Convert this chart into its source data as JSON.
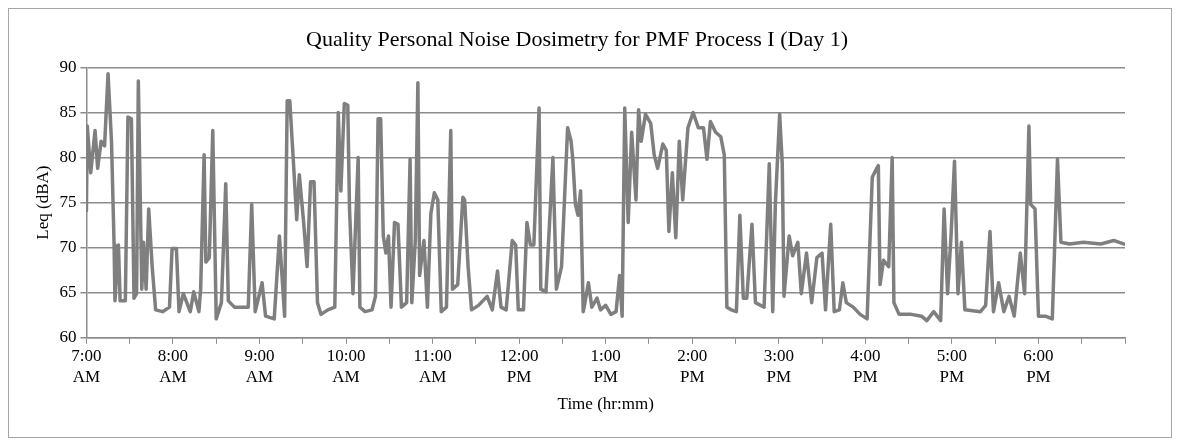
{
  "chart_data": {
    "type": "line",
    "title": "Quality Personal Noise Dosimetry for PMF Process I (Day 1)",
    "xlabel": "Time (hr:mm)",
    "ylabel": "Leq (dBA)",
    "xlim": [
      7,
      19
    ],
    "xticks": [
      {
        "value": 7,
        "label": "7:00 AM"
      },
      {
        "value": 7.5,
        "label": null
      },
      {
        "value": 8,
        "label": "8:00 AM"
      },
      {
        "value": 8.5,
        "label": null
      },
      {
        "value": 9,
        "label": "9:00 AM"
      },
      {
        "value": 9.5,
        "label": null
      },
      {
        "value": 10,
        "label": "10:00 AM"
      },
      {
        "value": 10.5,
        "label": null
      },
      {
        "value": 11,
        "label": "11:00 AM"
      },
      {
        "value": 11.5,
        "label": null
      },
      {
        "value": 12,
        "label": "12:00 PM"
      },
      {
        "value": 12.5,
        "label": null
      },
      {
        "value": 13,
        "label": "1:00 PM"
      },
      {
        "value": 13.5,
        "label": null
      },
      {
        "value": 14,
        "label": "2:00 PM"
      },
      {
        "value": 14.5,
        "label": null
      },
      {
        "value": 15,
        "label": "3:00 PM"
      },
      {
        "value": 15.5,
        "label": null
      },
      {
        "value": 16,
        "label": "4:00 PM"
      },
      {
        "value": 16.5,
        "label": null
      },
      {
        "value": 17,
        "label": "5:00 PM"
      },
      {
        "value": 17.5,
        "label": null
      },
      {
        "value": 18,
        "label": "6:00 PM"
      },
      {
        "value": 18.5,
        "label": null
      },
      {
        "value": 19,
        "label": null
      }
    ],
    "ylim": [
      60,
      90
    ],
    "yticks": [
      60,
      65,
      70,
      75,
      80,
      85,
      90
    ],
    "grid": "y",
    "legend": false,
    "marker": "none",
    "line_style": "solid",
    "series": [
      {
        "color": "#7f7f7f",
        "x": [
          7.0,
          7.01,
          7.05,
          7.1,
          7.13,
          7.17,
          7.21,
          7.25,
          7.29,
          7.32,
          7.33,
          7.37,
          7.39,
          7.45,
          7.48,
          7.52,
          7.55,
          7.58,
          7.6,
          7.64,
          7.66,
          7.69,
          7.72,
          7.76,
          7.8,
          7.88,
          7.96,
          7.99,
          8.04,
          8.07,
          8.12,
          8.2,
          8.24,
          8.3,
          8.32,
          8.36,
          8.38,
          8.42,
          8.46,
          8.5,
          8.56,
          8.61,
          8.64,
          8.71,
          8.87,
          8.91,
          8.95,
          9.03,
          9.07,
          9.17,
          9.23,
          9.29,
          9.32,
          9.35,
          9.39,
          9.43,
          9.46,
          9.51,
          9.55,
          9.59,
          9.63,
          9.67,
          9.71,
          9.79,
          9.87,
          9.91,
          9.94,
          9.98,
          10.02,
          10.04,
          10.08,
          10.14,
          10.16,
          10.22,
          10.3,
          10.34,
          10.37,
          10.4,
          10.43,
          10.46,
          10.49,
          10.52,
          10.56,
          10.6,
          10.64,
          10.7,
          10.74,
          10.76,
          10.8,
          10.83,
          10.85,
          10.9,
          10.94,
          10.98,
          11.02,
          11.06,
          11.1,
          11.16,
          11.21,
          11.23,
          11.29,
          11.35,
          11.37,
          11.41,
          11.45,
          11.53,
          11.63,
          11.69,
          11.75,
          11.79,
          11.85,
          11.92,
          11.96,
          11.99,
          12.05,
          12.09,
          12.13,
          12.17,
          12.23,
          12.25,
          12.31,
          12.39,
          12.43,
          12.49,
          12.56,
          12.6,
          12.62,
          12.65,
          12.68,
          12.71,
          12.74,
          12.76,
          12.8,
          12.84,
          12.9,
          12.94,
          13.0,
          13.06,
          13.12,
          13.16,
          13.19,
          13.22,
          13.26,
          13.3,
          13.35,
          13.38,
          13.41,
          13.46,
          13.52,
          13.56,
          13.6,
          13.66,
          13.7,
          13.73,
          13.77,
          13.81,
          13.85,
          13.89,
          13.95,
          14.01,
          14.07,
          14.13,
          14.17,
          14.21,
          14.27,
          14.33,
          14.37,
          14.4,
          14.45,
          14.51,
          14.55,
          14.59,
          14.63,
          14.69,
          14.73,
          14.83,
          14.89,
          14.93,
          14.96,
          15.01,
          15.04,
          15.06,
          15.12,
          15.16,
          15.22,
          15.26,
          15.32,
          15.38,
          15.44,
          15.5,
          15.54,
          15.6,
          15.64,
          15.7,
          15.74,
          15.78,
          15.86,
          15.94,
          16.02,
          16.08,
          16.12,
          16.15,
          16.17,
          16.21,
          16.27,
          16.31,
          16.33,
          16.39,
          16.53,
          16.65,
          16.71,
          16.79,
          16.87,
          16.91,
          16.95,
          16.99,
          17.03,
          17.07,
          17.11,
          17.15,
          17.33,
          17.39,
          17.44,
          17.48,
          17.54,
          17.6,
          17.66,
          17.72,
          17.79,
          17.84,
          17.89,
          17.91,
          17.96,
          18.0,
          18.08,
          18.16,
          18.22,
          18.26,
          18.36,
          18.52,
          18.72,
          18.87,
          18.99
        ],
        "values": [
          74.1,
          83.5,
          78.3,
          83.0,
          78.8,
          81.8,
          81.3,
          89.3,
          81.8,
          70.3,
          64.1,
          70.3,
          64.1,
          64.1,
          84.5,
          84.3,
          64.4,
          64.9,
          88.5,
          65.4,
          70.6,
          65.4,
          74.3,
          67.9,
          63.1,
          62.9,
          63.4,
          69.9,
          69.9,
          62.9,
          64.9,
          62.9,
          65.1,
          62.9,
          65.4,
          80.3,
          68.4,
          68.9,
          83.0,
          62.1,
          63.9,
          77.1,
          64.1,
          63.4,
          63.4,
          74.8,
          62.9,
          66.1,
          62.4,
          62.1,
          71.3,
          62.4,
          86.3,
          86.3,
          79.8,
          73.1,
          78.1,
          72.8,
          67.9,
          77.3,
          77.3,
          63.9,
          62.6,
          63.1,
          63.4,
          85.0,
          76.3,
          86.0,
          85.8,
          74.3,
          64.9,
          80.0,
          63.4,
          62.9,
          63.1,
          64.6,
          84.3,
          84.3,
          71.3,
          69.4,
          71.3,
          63.4,
          72.8,
          72.6,
          63.4,
          63.9,
          79.8,
          63.9,
          70.8,
          88.3,
          66.9,
          70.8,
          63.4,
          73.8,
          76.1,
          75.3,
          62.9,
          63.4,
          83.0,
          65.4,
          65.9,
          75.6,
          75.3,
          67.9,
          63.1,
          63.6,
          64.6,
          63.1,
          67.4,
          63.4,
          63.1,
          70.8,
          70.3,
          63.1,
          63.1,
          72.8,
          70.3,
          70.3,
          85.5,
          65.4,
          65.1,
          80.0,
          65.4,
          67.9,
          83.3,
          81.8,
          79.8,
          74.8,
          73.6,
          76.3,
          62.9,
          63.9,
          66.1,
          63.4,
          64.4,
          63.1,
          63.6,
          62.6,
          62.9,
          66.9,
          62.4,
          85.5,
          72.8,
          82.8,
          75.3,
          85.3,
          81.8,
          84.8,
          83.8,
          80.3,
          78.8,
          81.5,
          80.8,
          71.8,
          78.3,
          71.1,
          81.8,
          75.3,
          83.3,
          85.0,
          83.3,
          83.3,
          79.8,
          84.0,
          82.8,
          82.3,
          80.3,
          63.4,
          63.1,
          62.9,
          73.6,
          64.4,
          64.4,
          72.6,
          63.9,
          63.4,
          79.3,
          62.9,
          74.8,
          84.8,
          79.3,
          64.6,
          71.3,
          69.1,
          70.6,
          64.9,
          69.4,
          63.9,
          68.9,
          69.4,
          63.1,
          72.6,
          62.9,
          63.1,
          66.1,
          63.9,
          63.4,
          62.6,
          62.1,
          77.8,
          78.6,
          79.1,
          65.9,
          68.6,
          67.9,
          80.0,
          63.9,
          62.6,
          62.6,
          62.4,
          61.9,
          62.9,
          61.9,
          74.3,
          64.9,
          71.3,
          79.6,
          64.9,
          70.6,
          63.1,
          62.9,
          63.6,
          71.8,
          62.9,
          66.1,
          62.9,
          64.6,
          62.4,
          69.4,
          64.9,
          83.5,
          74.8,
          74.3,
          62.4,
          62.4,
          62.1,
          79.8,
          70.6,
          70.4,
          70.6,
          70.4,
          70.8,
          70.4
        ]
      }
    ]
  }
}
